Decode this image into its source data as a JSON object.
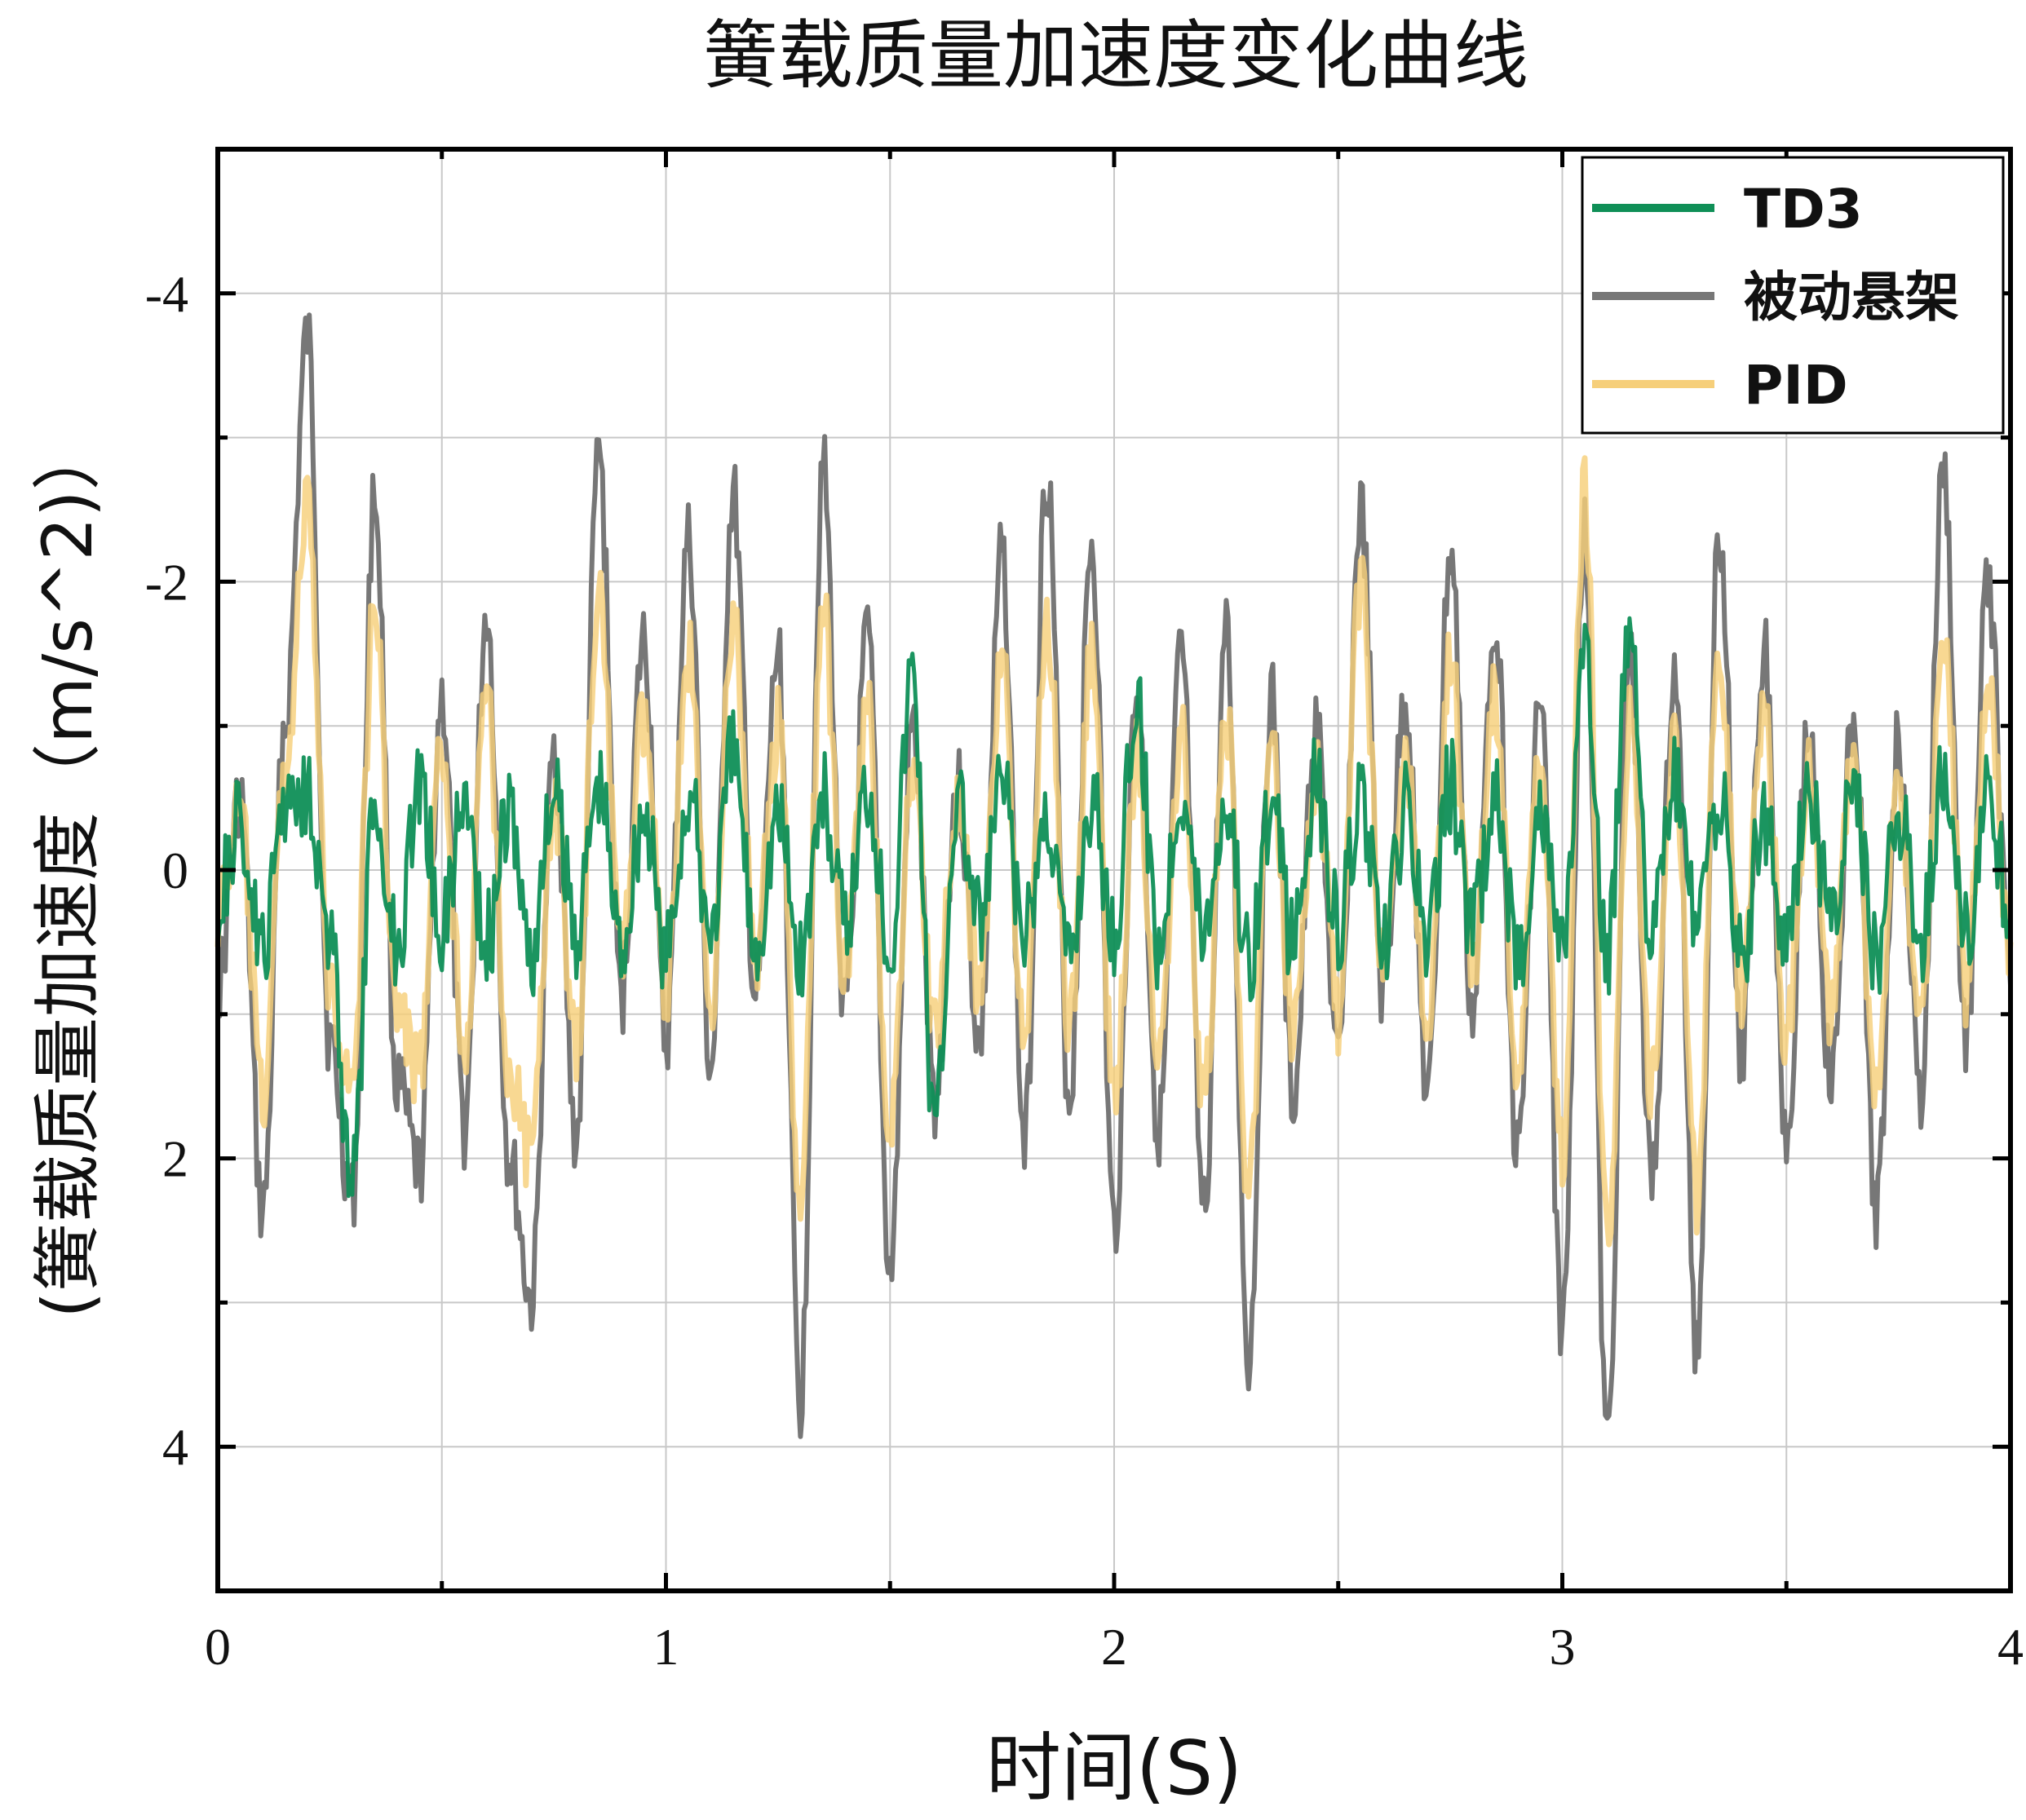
{
  "chart_data": {
    "type": "line",
    "title": "簧载质量加速度变化曲线",
    "xlabel": "时间(S)",
    "ylabel": "(簧载质量加速度（m/s^2)）",
    "xlim": [
      0,
      4
    ],
    "ylim": [
      5,
      -5
    ],
    "y_inverted": true,
    "grid": true,
    "legend_position": "top-right",
    "xticks": [
      0,
      1,
      2,
      3,
      4
    ],
    "yticks": [
      -4,
      -2,
      0,
      2,
      4
    ],
    "xtick_labels": [
      "0",
      "1",
      "2",
      "3",
      "4"
    ],
    "ytick_labels": [
      "-4",
      "-2",
      "0",
      "2",
      "4"
    ],
    "series": [
      {
        "name": "被动悬架",
        "color": "#777777",
        "x": [
          0.0,
          0.05,
          0.1,
          0.15,
          0.2,
          0.25,
          0.3,
          0.35,
          0.4,
          0.45,
          0.5,
          0.55,
          0.6,
          0.65,
          0.7,
          0.75,
          0.8,
          0.85,
          0.9,
          0.95,
          1.0,
          1.05,
          1.1,
          1.15,
          1.2,
          1.25,
          1.3,
          1.35,
          1.4,
          1.45,
          1.5,
          1.55,
          1.6,
          1.65,
          1.7,
          1.75,
          1.8,
          1.85,
          1.9,
          1.95,
          2.0,
          2.05,
          2.1,
          2.15,
          2.2,
          2.25,
          2.3,
          2.35,
          2.4,
          2.45,
          2.5,
          2.55,
          2.6,
          2.65,
          2.7,
          2.75,
          2.8,
          2.85,
          2.9,
          2.95,
          3.0,
          3.05,
          3.1,
          3.15,
          3.2,
          3.25,
          3.3,
          3.35,
          3.4,
          3.45,
          3.5,
          3.55,
          3.6,
          3.65,
          3.7,
          3.75,
          3.8,
          3.85,
          3.9,
          3.95,
          4.0
        ],
        "values": [
          0.8,
          -0.5,
          2.4,
          -1.0,
          -3.7,
          1.2,
          2.3,
          -2.6,
          1.5,
          2.1,
          -1.2,
          1.8,
          -1.8,
          2.0,
          3.0,
          -0.8,
          1.9,
          -2.9,
          0.9,
          -1.6,
          1.2,
          -2.3,
          1.4,
          -2.6,
          0.9,
          -1.5,
          3.7,
          -2.8,
          1.0,
          -1.6,
          2.8,
          -1.0,
          1.6,
          -0.6,
          1.2,
          -2.2,
          1.9,
          -2.8,
          1.6,
          -2.3,
          2.5,
          -1.2,
          1.8,
          -1.5,
          2.4,
          -1.6,
          3.4,
          -1.2,
          1.6,
          -1.0,
          1.4,
          -2.5,
          0.9,
          -1.2,
          1.6,
          -2.2,
          1.0,
          -1.8,
          2.0,
          -1.2,
          3.2,
          -2.3,
          4.0,
          -1.5,
          2.2,
          -1.4,
          3.3,
          -2.4,
          1.3,
          -1.6,
          1.8,
          -1.0,
          1.5,
          -1.1,
          2.4,
          -0.9,
          1.6,
          -2.8,
          1.2,
          -2.0,
          0.8
        ]
      },
      {
        "name": "PID",
        "color": "#f6cf7a",
        "x": [
          0.0,
          0.05,
          0.1,
          0.15,
          0.2,
          0.25,
          0.3,
          0.35,
          0.4,
          0.45,
          0.5,
          0.55,
          0.6,
          0.65,
          0.7,
          0.75,
          0.8,
          0.85,
          0.9,
          0.95,
          1.0,
          1.05,
          1.1,
          1.15,
          1.2,
          1.25,
          1.3,
          1.35,
          1.4,
          1.45,
          1.5,
          1.55,
          1.6,
          1.65,
          1.7,
          1.75,
          1.8,
          1.85,
          1.9,
          1.95,
          2.0,
          2.05,
          2.1,
          2.15,
          2.2,
          2.25,
          2.3,
          2.35,
          2.4,
          2.45,
          2.5,
          2.55,
          2.6,
          2.65,
          2.7,
          2.75,
          2.8,
          2.85,
          2.9,
          2.95,
          3.0,
          3.05,
          3.1,
          3.15,
          3.2,
          3.25,
          3.3,
          3.35,
          3.4,
          3.45,
          3.5,
          3.55,
          3.6,
          3.65,
          3.7,
          3.75,
          3.8,
          3.85,
          3.9,
          3.95,
          4.0
        ],
        "values": [
          0.3,
          -0.4,
          1.6,
          -0.7,
          -2.5,
          0.8,
          1.5,
          -1.8,
          1.0,
          1.4,
          -0.8,
          1.2,
          -1.2,
          1.4,
          2.0,
          -0.5,
          1.3,
          -2.0,
          0.6,
          -1.0,
          0.8,
          -1.5,
          0.9,
          -1.7,
          0.6,
          -1.0,
          2.4,
          -1.8,
          0.7,
          -1.1,
          1.8,
          -0.7,
          1.1,
          -0.4,
          0.8,
          -1.5,
          1.3,
          -1.8,
          1.1,
          -1.5,
          1.6,
          -0.8,
          1.2,
          -1.0,
          1.6,
          -1.1,
          2.2,
          -0.8,
          1.1,
          -0.7,
          1.0,
          -2.0,
          0.6,
          -0.8,
          1.1,
          -1.5,
          0.7,
          -1.2,
          1.4,
          -0.8,
          2.0,
          -2.6,
          2.6,
          -1.0,
          1.5,
          -0.9,
          2.3,
          -1.6,
          0.9,
          -1.1,
          1.2,
          -0.7,
          1.0,
          -0.8,
          1.6,
          -0.6,
          1.1,
          -1.6,
          0.8,
          -1.3,
          0.5
        ]
      },
      {
        "name": "TD3",
        "color": "#0f8f57",
        "x": [
          0.0,
          0.05,
          0.1,
          0.15,
          0.2,
          0.25,
          0.3,
          0.35,
          0.4,
          0.45,
          0.5,
          0.55,
          0.6,
          0.65,
          0.7,
          0.75,
          0.8,
          0.85,
          0.9,
          0.95,
          1.0,
          1.05,
          1.1,
          1.15,
          1.2,
          1.25,
          1.3,
          1.35,
          1.4,
          1.45,
          1.5,
          1.55,
          1.6,
          1.65,
          1.7,
          1.75,
          1.8,
          1.85,
          1.9,
          1.95,
          2.0,
          2.05,
          2.1,
          2.15,
          2.2,
          2.25,
          2.3,
          2.35,
          2.4,
          2.45,
          2.5,
          2.55,
          2.6,
          2.65,
          2.7,
          2.75,
          2.8,
          2.85,
          2.9,
          2.95,
          3.0,
          3.05,
          3.1,
          3.15,
          3.2,
          3.25,
          3.3,
          3.35,
          3.4,
          3.45,
          3.5,
          3.55,
          3.6,
          3.65,
          3.7,
          3.75,
          3.8,
          3.85,
          3.9,
          3.95,
          4.0
        ],
        "values": [
          0.2,
          -0.3,
          0.6,
          -0.5,
          -0.6,
          0.5,
          2.2,
          -0.4,
          0.5,
          -0.6,
          0.4,
          -0.5,
          0.5,
          -0.4,
          0.6,
          -0.5,
          0.4,
          -0.6,
          0.5,
          -0.4,
          0.6,
          -0.5,
          0.4,
          -0.8,
          0.5,
          -0.4,
          0.6,
          -0.5,
          0.4,
          -0.6,
          0.5,
          -1.4,
          1.8,
          -0.5,
          0.4,
          -0.6,
          0.5,
          -0.4,
          0.6,
          -0.5,
          0.4,
          -1.1,
          0.5,
          -0.6,
          0.4,
          -0.5,
          0.6,
          -0.4,
          0.5,
          -0.6,
          0.4,
          -0.5,
          0.6,
          -0.4,
          0.5,
          -0.6,
          0.4,
          -0.5,
          0.6,
          -0.4,
          0.5,
          -1.4,
          0.6,
          -1.8,
          0.5,
          -0.6,
          0.4,
          -0.5,
          0.6,
          -0.4,
          0.5,
          -0.6,
          0.4,
          -0.5,
          0.6,
          -0.4,
          0.5,
          -0.6,
          0.4,
          -0.5,
          0.3
        ]
      }
    ],
    "legend_order": [
      "TD3",
      "被动悬架",
      "PID"
    ]
  }
}
